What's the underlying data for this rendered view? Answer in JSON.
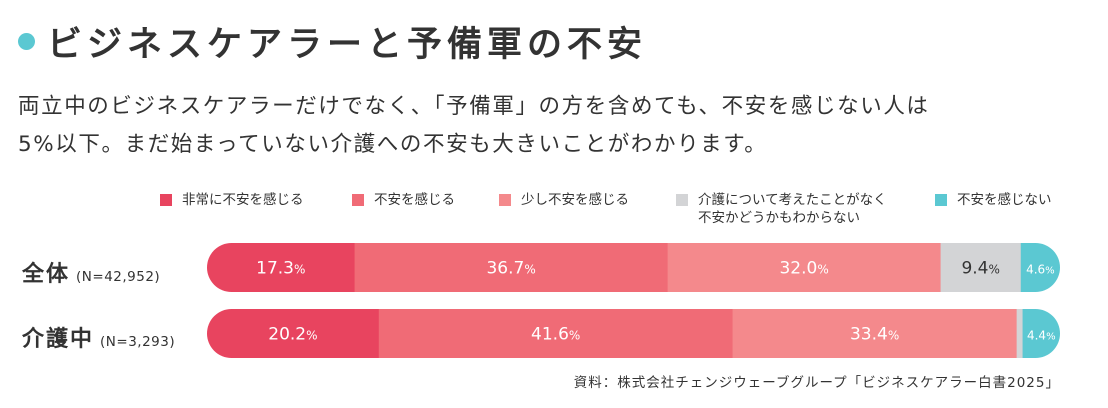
{
  "title": "ビジネスケアラーと予備軍の不安",
  "description": [
    "両立中のビジネスケアラーだけでなく、「予備軍」の方を含めても、不安を感じない人は",
    "5%以下。まだ始まっていない介護への不安も大きいことがわかります。"
  ],
  "source": "資料：株式会社チェンジウェーブグループ「ビジネスケアラー白書2025」",
  "chart_data": {
    "type": "bar",
    "orientation": "horizontal",
    "stacked": true,
    "normalized": true,
    "value_unit": "%",
    "legend_position": "top",
    "categories": [
      {
        "name": "全体",
        "n": "(N=42,952)"
      },
      {
        "name": "介護中",
        "n": "(N=3,293)"
      }
    ],
    "series": [
      {
        "name": "非常に不安を感じる",
        "color": "#E8445F",
        "values": [
          17.3,
          20.2
        ],
        "labels": [
          "17.3",
          "20.2"
        ]
      },
      {
        "name": "不安を感じる",
        "color": "#F06B76",
        "values": [
          36.7,
          41.6
        ],
        "labels": [
          "36.7",
          "41.6"
        ]
      },
      {
        "name": "少し不安を感じる",
        "color": "#F4898C",
        "values": [
          32.0,
          33.4
        ],
        "labels": [
          "32.0",
          "33.4"
        ]
      },
      {
        "name": "介護について考えたことがなく\n不安かどうかもわからない",
        "color": "#D3D4D6",
        "values": [
          9.4,
          0.7
        ],
        "labels": [
          "9.4",
          ""
        ]
      },
      {
        "name": "不安を感じない",
        "color": "#5BC8D2",
        "values": [
          4.6,
          4.4
        ],
        "labels": [
          "4.6",
          "4.4"
        ]
      }
    ]
  }
}
